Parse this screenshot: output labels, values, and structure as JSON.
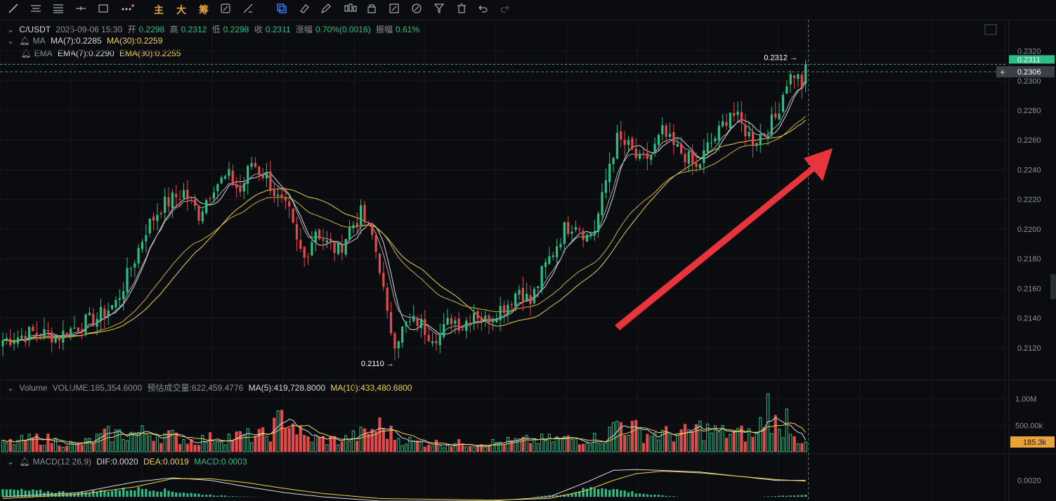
{
  "toolbar": {
    "icons": [
      "line-tool-icon",
      "horizontal-lines-icon",
      "parallel-lines-icon",
      "crosshair-line-icon",
      "rectangle-icon",
      "dots-menu-icon",
      "zh-main-label",
      "zh-big-label",
      "zh-chip-label",
      "pencil-sync-icon",
      "ruler-icon",
      "copy-layers-icon",
      "eraser-icon",
      "pen-icon",
      "candle-icon",
      "trash-icon",
      "undo-icon",
      "redo-icon"
    ],
    "main_label": "主",
    "big_label": "大",
    "chip_label": "筹"
  },
  "legend": {
    "symbol": "C/USDT",
    "datetime": "2025-09-06 15:30",
    "open_label": "开",
    "open": "0.2298",
    "high_label": "高",
    "high": "0.2312",
    "low_label": "低",
    "low": "0.2298",
    "close_label": "收",
    "close": "0.2311",
    "change_label": "涨幅",
    "change": "0.70%(0.0016)",
    "amp_label": "振幅",
    "amp": "0.61%",
    "ma_name": "MA",
    "ma7": "MA(7):0.2285",
    "ma30": "MA(30):0.2259",
    "ema_name": "EMA",
    "ema7": "EMA(7):0.2290",
    "ema30": "EMA(30):0.2255"
  },
  "volume_legend": {
    "name": "Volume",
    "volume": "VOLUME:185,354.6000",
    "est_label": "预估成交量:622,459.4776",
    "ma5": "MA(5):419,728.8000",
    "ma10": "MA(10):433,480.6800"
  },
  "macd_legend": {
    "name": "MACD(12,26,9)",
    "dif": "DIF:0.0020",
    "dea": "DEA:0.0019",
    "macd": "MACD:0.0003"
  },
  "annotations": {
    "high_marker": "0.2312",
    "low_marker": "0.2110",
    "last_price": "0.2311",
    "crosshair_price": "0.2306",
    "volume_last": "185.3k"
  },
  "colors": {
    "up": "#2ebd85",
    "down": "#e04b4b",
    "ma_fast": "#d6d9de",
    "ma_slow": "#f0d14a",
    "arrow": "#e8343c",
    "background": "#0b0c0f"
  },
  "chart_data": [
    {
      "type": "candlestick",
      "title": "C/USDT",
      "y_ticks": [
        "0.2320",
        "0.2300",
        "0.2280",
        "0.2260",
        "0.2240",
        "0.2220",
        "0.2200",
        "0.2180",
        "0.2160",
        "0.2140",
        "0.2120"
      ],
      "ylim": [
        0.21,
        0.2325
      ],
      "max_point": {
        "label": "0.2312",
        "value": 0.2312
      },
      "min_point": {
        "label": "0.2110",
        "value": 0.211
      },
      "close_path": [
        [
          0,
          0.2125
        ],
        [
          8,
          0.213
        ],
        [
          15,
          0.2128
        ],
        [
          20,
          0.2135
        ],
        [
          25,
          0.214
        ],
        [
          30,
          0.215
        ],
        [
          35,
          0.218
        ],
        [
          38,
          0.22
        ],
        [
          42,
          0.2215
        ],
        [
          48,
          0.2225
        ],
        [
          52,
          0.221
        ],
        [
          56,
          0.223
        ],
        [
          60,
          0.2235
        ],
        [
          63,
          0.2225
        ],
        [
          66,
          0.2245
        ],
        [
          70,
          0.2235
        ],
        [
          73,
          0.222
        ],
        [
          76,
          0.221
        ],
        [
          78,
          0.219
        ],
        [
          80,
          0.218
        ],
        [
          83,
          0.22
        ],
        [
          86,
          0.219
        ],
        [
          89,
          0.2185
        ],
        [
          92,
          0.22
        ],
        [
          95,
          0.221
        ],
        [
          98,
          0.2195
        ],
        [
          100,
          0.2175
        ],
        [
          102,
          0.214
        ],
        [
          104,
          0.2125
        ],
        [
          107,
          0.2135
        ],
        [
          110,
          0.2138
        ],
        [
          113,
          0.213
        ],
        [
          116,
          0.2128
        ],
        [
          119,
          0.214
        ],
        [
          122,
          0.2135
        ],
        [
          125,
          0.2145
        ],
        [
          128,
          0.2138
        ],
        [
          131,
          0.2145
        ],
        [
          134,
          0.215
        ],
        [
          137,
          0.216
        ],
        [
          140,
          0.215
        ],
        [
          143,
          0.217
        ],
        [
          146,
          0.2185
        ],
        [
          149,
          0.22
        ],
        [
          152,
          0.2205
        ],
        [
          155,
          0.2195
        ],
        [
          157,
          0.22
        ],
        [
          159,
          0.222
        ],
        [
          161,
          0.2245
        ],
        [
          163,
          0.226
        ],
        [
          166,
          0.2255
        ],
        [
          169,
          0.2245
        ],
        [
          172,
          0.225
        ],
        [
          175,
          0.2265
        ],
        [
          178,
          0.2255
        ],
        [
          181,
          0.225
        ],
        [
          184,
          0.224
        ],
        [
          187,
          0.2255
        ],
        [
          190,
          0.2265
        ],
        [
          193,
          0.228
        ],
        [
          196,
          0.227
        ],
        [
          199,
          0.226
        ],
        [
          202,
          0.2265
        ],
        [
          205,
          0.2275
        ],
        [
          208,
          0.23
        ],
        [
          210,
          0.2305
        ],
        [
          212,
          0.2298
        ],
        [
          213,
          0.2311
        ]
      ],
      "series": [
        {
          "name": "MA(7)",
          "last": 0.2285
        },
        {
          "name": "MA(30)",
          "last": 0.2259
        },
        {
          "name": "EMA(7)",
          "last": 0.229
        },
        {
          "name": "EMA(30)",
          "last": 0.2255
        }
      ]
    },
    {
      "type": "bar",
      "title": "Volume",
      "y_ticks": [
        "1.00M",
        "500.00k"
      ],
      "ylim": [
        0,
        1100000
      ],
      "last_value": 185354.6,
      "ma5_last": 419728.8,
      "ma10_last": 433480.68,
      "volume_path": [
        [
          0,
          180000
        ],
        [
          10,
          300000
        ],
        [
          20,
          150000
        ],
        [
          28,
          380000
        ],
        [
          40,
          420000
        ],
        [
          50,
          250000
        ],
        [
          60,
          330000
        ],
        [
          70,
          360000
        ],
        [
          75,
          820000
        ],
        [
          80,
          300000
        ],
        [
          90,
          250000
        ],
        [
          96,
          400000
        ],
        [
          100,
          560000
        ],
        [
          105,
          300000
        ],
        [
          110,
          200000
        ],
        [
          120,
          180000
        ],
        [
          130,
          200000
        ],
        [
          140,
          250000
        ],
        [
          150,
          280000
        ],
        [
          160,
          300000
        ],
        [
          163,
          680000
        ],
        [
          166,
          560000
        ],
        [
          170,
          400000
        ],
        [
          180,
          380000
        ],
        [
          185,
          520000
        ],
        [
          190,
          420000
        ],
        [
          200,
          380000
        ],
        [
          203,
          1050000
        ],
        [
          206,
          400000
        ],
        [
          208,
          830000
        ],
        [
          211,
          300000
        ],
        [
          213,
          185354
        ]
      ]
    },
    {
      "type": "bar",
      "title": "MACD(12,26,9)",
      "y_ticks": [
        "0.0020"
      ],
      "ylim": [
        -0.0005,
        0.004
      ],
      "dif_last": 0.002,
      "dea_last": 0.0019,
      "macd_last": 0.0003,
      "hist_path": [
        [
          0,
          0.001
        ],
        [
          10,
          0.0008
        ],
        [
          20,
          0.0006
        ],
        [
          30,
          0.001
        ],
        [
          38,
          0.0012
        ],
        [
          45,
          0.0008
        ],
        [
          52,
          0.0004
        ],
        [
          60,
          0.0001
        ],
        [
          70,
          0.0
        ],
        [
          80,
          0.0
        ],
        [
          90,
          0.0
        ],
        [
          100,
          0.0
        ],
        [
          120,
          0.0
        ],
        [
          140,
          0.0
        ],
        [
          150,
          0.0004
        ],
        [
          155,
          0.0012
        ],
        [
          160,
          0.0014
        ],
        [
          163,
          0.001
        ],
        [
          168,
          0.0006
        ],
        [
          172,
          0.0003
        ],
        [
          180,
          0.0
        ],
        [
          200,
          0.0
        ],
        [
          213,
          0.0003
        ]
      ],
      "dif_path": [
        [
          0,
          0.0
        ],
        [
          20,
          0.0005
        ],
        [
          35,
          0.0018
        ],
        [
          45,
          0.0023
        ],
        [
          55,
          0.002
        ],
        [
          65,
          0.0012
        ],
        [
          75,
          0.0005
        ],
        [
          85,
          0.0
        ],
        [
          100,
          -0.0005
        ],
        [
          130,
          -0.0005
        ],
        [
          145,
          0.0
        ],
        [
          155,
          0.0018
        ],
        [
          162,
          0.0032
        ],
        [
          168,
          0.0033
        ],
        [
          175,
          0.0032
        ],
        [
          185,
          0.003
        ],
        [
          195,
          0.0025
        ],
        [
          205,
          0.002
        ],
        [
          213,
          0.002
        ]
      ],
      "dea_path": [
        [
          0,
          -0.0002
        ],
        [
          20,
          0.0003
        ],
        [
          35,
          0.0012
        ],
        [
          45,
          0.0022
        ],
        [
          55,
          0.0022
        ],
        [
          65,
          0.0017
        ],
        [
          75,
          0.001
        ],
        [
          85,
          0.0004
        ],
        [
          100,
          -0.0002
        ],
        [
          130,
          -0.0004
        ],
        [
          145,
          -0.0002
        ],
        [
          155,
          0.0008
        ],
        [
          162,
          0.002
        ],
        [
          168,
          0.0028
        ],
        [
          175,
          0.0031
        ],
        [
          185,
          0.0029
        ],
        [
          195,
          0.0025
        ],
        [
          205,
          0.0021
        ],
        [
          213,
          0.0019
        ]
      ]
    }
  ]
}
